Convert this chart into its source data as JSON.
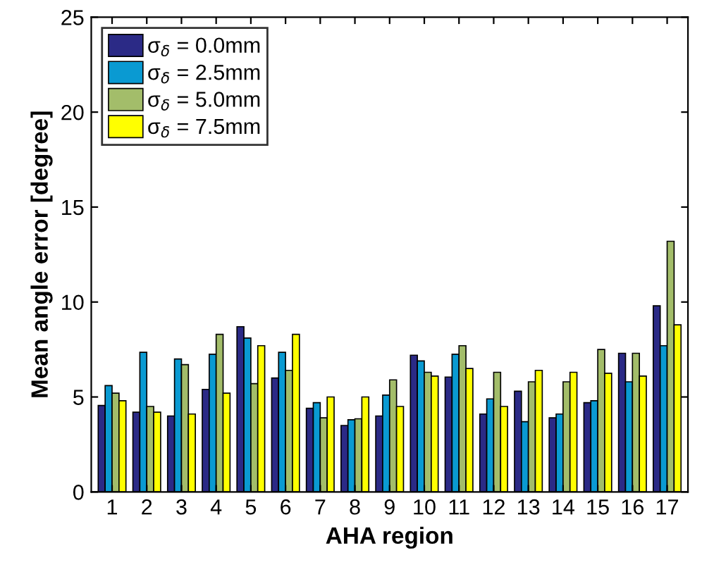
{
  "chart_data": {
    "type": "bar",
    "xlabel": "AHA region",
    "ylabel": "Mean angle error [degree]",
    "categories": [
      "1",
      "2",
      "3",
      "4",
      "5",
      "6",
      "7",
      "8",
      "9",
      "10",
      "11",
      "12",
      "13",
      "14",
      "15",
      "16",
      "17"
    ],
    "series": [
      {
        "name": "σ$_{δ}$ = 0.0mm",
        "color": "#2b2a86",
        "values": [
          4.55,
          4.2,
          4.0,
          5.4,
          8.7,
          6.0,
          4.4,
          3.5,
          4.0,
          7.2,
          6.05,
          4.1,
          5.3,
          3.9,
          4.7,
          7.3,
          9.8
        ]
      },
      {
        "name": "σ$_{δ}$ = 2.5mm",
        "color": "#0a9ad2",
        "values": [
          5.6,
          7.35,
          7.0,
          7.25,
          8.1,
          7.35,
          4.7,
          3.8,
          5.1,
          6.9,
          7.25,
          4.9,
          3.7,
          4.1,
          4.8,
          5.8,
          7.7
        ]
      },
      {
        "name": "σ$_{δ}$ = 5.0mm",
        "color": "#a3bd6a",
        "values": [
          5.2,
          4.5,
          6.7,
          8.3,
          5.7,
          6.4,
          3.9,
          3.85,
          5.9,
          6.3,
          7.7,
          6.3,
          5.8,
          5.8,
          7.5,
          7.3,
          13.2
        ]
      },
      {
        "name": "σ$_{δ}$ = 7.5mm",
        "color": "#ffff00",
        "values": [
          4.8,
          4.2,
          4.1,
          5.2,
          7.7,
          8.3,
          5.0,
          5.0,
          4.5,
          6.1,
          6.5,
          4.5,
          6.4,
          6.3,
          6.25,
          6.1,
          8.8
        ]
      }
    ],
    "ylim": [
      0,
      25
    ],
    "yticks": [
      0,
      5,
      10,
      15,
      20,
      25
    ],
    "grid": false,
    "legend": "top left"
  }
}
